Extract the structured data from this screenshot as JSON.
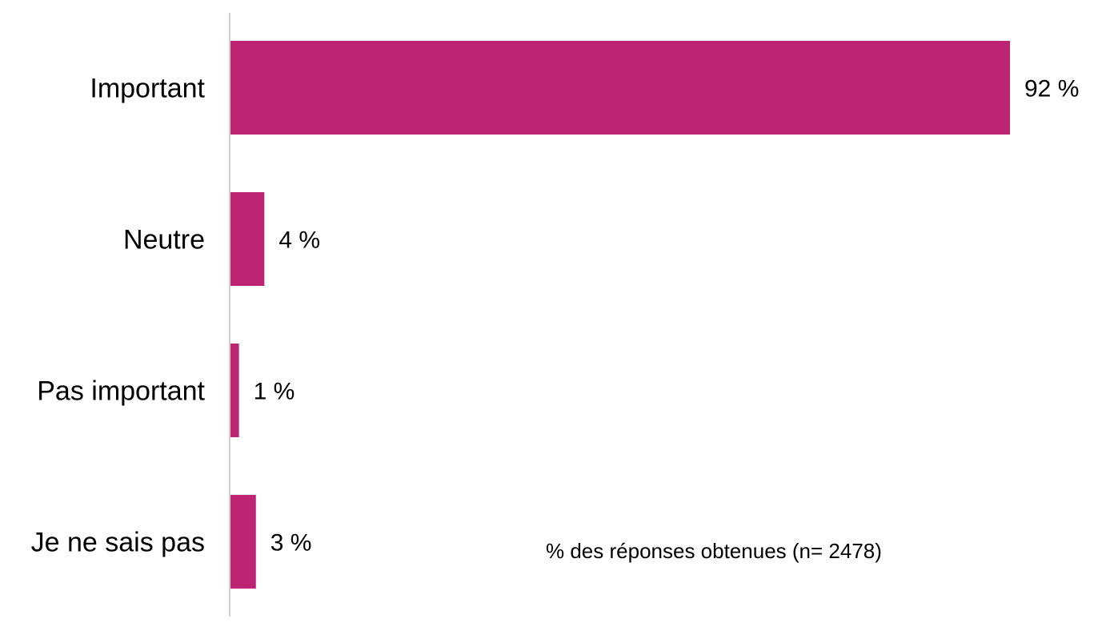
{
  "chart_data": {
    "type": "bar",
    "orientation": "horizontal",
    "categories": [
      "Important",
      "Neutre",
      "Pas important",
      "Je ne sais pas"
    ],
    "values": [
      92,
      4,
      1,
      3
    ],
    "value_labels": [
      "92 %",
      "4 %",
      "1 %",
      "3 %"
    ],
    "unit": "%",
    "annotation": "% des réponses obtenues (n= 2478)",
    "xlim": [
      0,
      92
    ],
    "bar_color": "#BD2574",
    "axis_color": "#D0D0D0",
    "grid": false,
    "legend": "none"
  }
}
